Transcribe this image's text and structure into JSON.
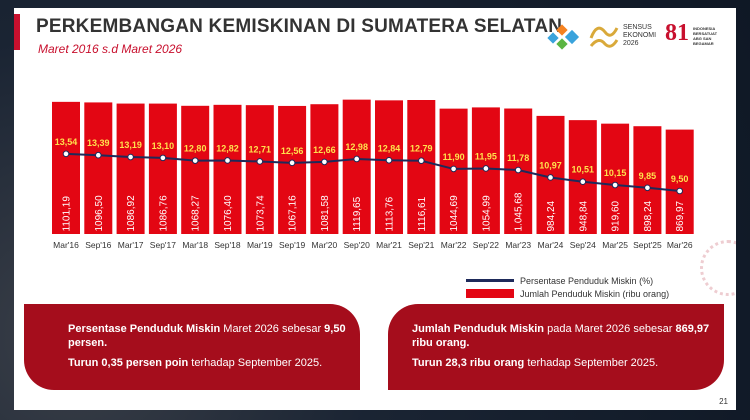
{
  "header": {
    "title": "PERKEMBANGAN KEMISKINAN DI SUMATERA SELATAN",
    "subtitle": "Maret 2016 s.d Maret 2026"
  },
  "logos": {
    "sensus": "SENSUS EKONOMI 2026",
    "eightyone": "81",
    "indonesia": "INDONESIA BERSATUAT ABG SAN BEGAMAR"
  },
  "colors": {
    "bar": "#e30613",
    "line": "#1e2a5a",
    "label_yellow": "#ffe14d",
    "panel": "#a50d1c",
    "accent": "#c8102e"
  },
  "chart_data": {
    "type": "bar",
    "categories": [
      "Mar'16",
      "Sep'16",
      "Mar'17",
      "Sep'17",
      "Mar'18",
      "Sep'18",
      "Mar'19",
      "Sep'19",
      "Mar'20",
      "Sep'20",
      "Mar'21",
      "Sep'21",
      "Mar'22",
      "Sep'22",
      "Mar'23",
      "Mar'24",
      "Sep'24",
      "Mar'25",
      "Sept'25",
      "Mar'26"
    ],
    "series": [
      {
        "name": "Jumlah Penduduk Miskin (ribu orang)",
        "type": "bar",
        "values": [
          1101.19,
          1096.5,
          1086.92,
          1086.76,
          1068.27,
          1076.4,
          1073.74,
          1067.16,
          1081.58,
          1119.65,
          1113.76,
          1116.61,
          1044.69,
          1054.99,
          1045.68,
          984.24,
          948.84,
          919.6,
          898.24,
          869.97
        ],
        "labels": [
          "1101,19",
          "1096,50",
          "1086,92",
          "1086,76",
          "1068,27",
          "1076,40",
          "1073,74",
          "1067,16",
          "1081,58",
          "1119,65",
          "1113,76",
          "1116,61",
          "1044,69",
          "1054,99",
          "1.045,68",
          "984,24",
          "948,84",
          "919,60",
          "898,24",
          "869,97"
        ]
      },
      {
        "name": "Persentase Penduduk Miskin (%)",
        "type": "line",
        "values": [
          13.54,
          13.39,
          13.19,
          13.1,
          12.8,
          12.82,
          12.71,
          12.56,
          12.66,
          12.98,
          12.84,
          12.79,
          11.9,
          11.95,
          11.78,
          10.97,
          10.51,
          10.15,
          9.85,
          9.5
        ],
        "labels": [
          "13,54",
          "13,39",
          "13,19",
          "13,10",
          "12,80",
          "12,82",
          "12,71",
          "12,56",
          "12,66",
          "12,98",
          "12,84",
          "12,79",
          "11,90",
          "11,95",
          "11,78",
          "10,97",
          "10,51",
          "10,15",
          "9,85",
          "9,50"
        ]
      }
    ],
    "legend": "bottom-right",
    "grid": false
  },
  "legend": {
    "line_label": "Persentase Penduduk Miskin (%)",
    "bar_label": "Jumlah Penduduk Miskin (ribu orang)"
  },
  "panels": {
    "left": {
      "p1_bold": "Persentase Penduduk Miskin",
      "p1_text": " Maret 2026 sebesar ",
      "p1_bold2": "9,50 persen.",
      "p2_bold": "Turun 0,35 persen poin",
      "p2_text": " terhadap September 2025."
    },
    "right": {
      "p1_bold": "Jumlah Penduduk Miskin",
      "p1_text": " pada  Maret 2026 sebesar ",
      "p1_bold2": "869,97 ribu orang.",
      "p2_bold": "Turun 28,3 ribu orang",
      "p2_text": " terhadap September 2025."
    }
  },
  "page_number": "21"
}
